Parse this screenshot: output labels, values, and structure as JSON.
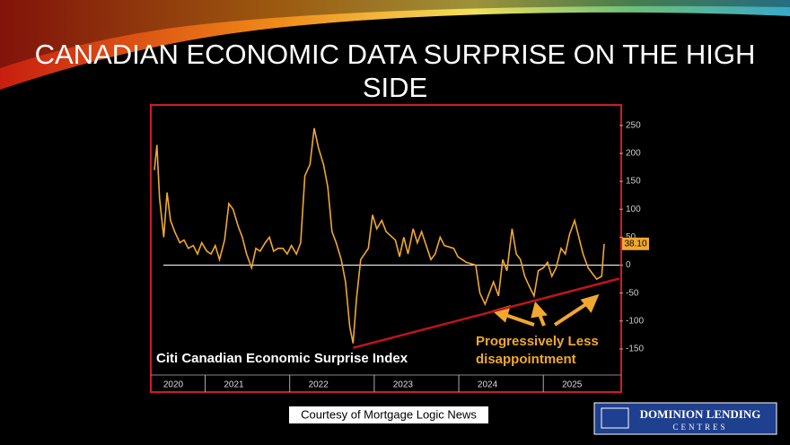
{
  "slide": {
    "title": "CANADIAN ECONOMIC DATA SURPRISE ON THE HIGH SIDE",
    "credit": "Courtesy of Mortgage Logic News",
    "logo": {
      "name": "Dominion Lending",
      "sub": "CENTRES"
    }
  },
  "chart_data": {
    "type": "line",
    "x": [
      2020.4,
      2020.43,
      2020.46,
      2020.51,
      2020.55,
      2020.59,
      2020.64,
      2020.7,
      2020.75,
      2020.8,
      2020.86,
      2020.91,
      2020.96,
      2021.02,
      2021.07,
      2021.12,
      2021.17,
      2021.23,
      2021.28,
      2021.33,
      2021.39,
      2021.44,
      2021.49,
      2021.55,
      2021.6,
      2021.65,
      2021.71,
      2021.76,
      2021.81,
      2021.86,
      2021.92,
      2021.97,
      2022.02,
      2022.08,
      2022.13,
      2022.18,
      2022.24,
      2022.29,
      2022.34,
      2022.4,
      2022.45,
      2022.5,
      2022.55,
      2022.61,
      2022.66,
      2022.71,
      2022.75,
      2022.79,
      2022.84,
      2022.93,
      2022.98,
      2023.03,
      2023.09,
      2023.14,
      2023.25,
      2023.3,
      2023.35,
      2023.4,
      2023.46,
      2023.51,
      2023.56,
      2023.67,
      2023.72,
      2023.78,
      2023.83,
      2023.94,
      2023.99,
      2024.09,
      2024.2,
      2024.25,
      2024.31,
      2024.36,
      2024.41,
      2024.47,
      2024.52,
      2024.57,
      2024.63,
      2024.68,
      2024.73,
      2024.78,
      2024.84,
      2024.89,
      2024.94,
      2025.0,
      2025.05,
      2025.1,
      2025.15,
      2025.21,
      2025.26,
      2025.31,
      2025.37,
      2025.42,
      2025.47,
      2025.53,
      2025.58,
      2025.63,
      2025.69,
      2025.72
    ],
    "series": [
      {
        "name": "Citi Canadian Economic Surprise Index",
        "color": "#f0a830",
        "values": [
          170,
          215,
          120,
          50,
          130,
          80,
          60,
          40,
          45,
          30,
          35,
          20,
          40,
          25,
          20,
          35,
          10,
          45,
          110,
          100,
          70,
          50,
          20,
          -5,
          30,
          25,
          40,
          50,
          25,
          30,
          30,
          20,
          35,
          20,
          40,
          160,
          180,
          245,
          210,
          180,
          140,
          60,
          40,
          10,
          -30,
          -110,
          -140,
          -60,
          10,
          30,
          90,
          65,
          80,
          60,
          45,
          15,
          50,
          20,
          65,
          40,
          60,
          10,
          20,
          50,
          35,
          30,
          15,
          5,
          0,
          -50,
          -70,
          -50,
          -30,
          -55,
          10,
          -10,
          65,
          20,
          10,
          -20,
          -40,
          -55,
          -10,
          -5,
          5,
          -20,
          -5,
          30,
          20,
          55,
          80,
          50,
          20,
          -5,
          -15,
          -25,
          -20,
          38.1
        ]
      }
    ],
    "last_label": {
      "value": 38.1,
      "label": "38.10"
    },
    "trendline": {
      "x": [
        2022.75,
        2025.9
      ],
      "y": [
        -148,
        -24
      ],
      "color": "#c0141c"
    },
    "annotations": [
      "Progressively Less",
      "disappointment"
    ],
    "xlim": [
      2020.4,
      2025.9
    ],
    "xticks": [
      {
        "value": 2020,
        "label": "2020"
      },
      {
        "value": 2021,
        "label": "2021"
      },
      {
        "value": 2022,
        "label": "2022"
      },
      {
        "value": 2023,
        "label": "2023"
      },
      {
        "value": 2024,
        "label": "2024"
      },
      {
        "value": 2025,
        "label": "2025"
      }
    ],
    "ylim": [
      -195,
      285
    ],
    "yticks": [
      -150,
      -100,
      -50,
      0,
      50,
      100,
      150,
      200,
      250
    ],
    "zero_line": true
  }
}
